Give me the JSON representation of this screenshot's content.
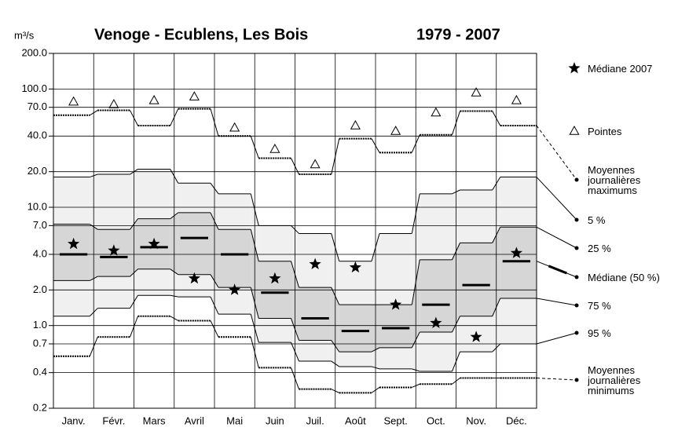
{
  "chart_data": {
    "type": "step",
    "title": "Venoge - Ecublens, Les Bois",
    "subtitle": "1979 - 2007",
    "y_label": "m³/s",
    "log_scale": true,
    "grid": true,
    "fills": [
      "#f0f0f0",
      "#d6d6d6"
    ],
    "categories": [
      "Janv.",
      "Févr.",
      "Mars",
      "Avril",
      "Mai",
      "Juin",
      "Juil.",
      "Août",
      "Sept.",
      "Oct.",
      "Nov.",
      "Déc."
    ],
    "ylim": [
      0.2,
      200
    ],
    "yticks": [
      {
        "value": 200,
        "label": "200.0"
      },
      {
        "value": 100,
        "label": "100.0"
      },
      {
        "value": 70,
        "label": "70.0"
      },
      {
        "value": 40,
        "label": "40.0"
      },
      {
        "value": 20,
        "label": "20.0"
      },
      {
        "value": 10,
        "label": "10.0"
      },
      {
        "value": 7,
        "label": "7.0"
      },
      {
        "value": 4,
        "label": "4.0"
      },
      {
        "value": 2,
        "label": "2.0"
      },
      {
        "value": 1,
        "label": "1.0"
      },
      {
        "value": 0.7,
        "label": "0.7"
      },
      {
        "value": 0.4,
        "label": "0.4"
      },
      {
        "value": 0.2,
        "label": "0.2"
      }
    ],
    "series": [
      {
        "name": "Médiane 2007",
        "color": "#000000",
        "marker": "star",
        "values": [
          4.9,
          4.3,
          4.9,
          2.5,
          2.0,
          2.5,
          3.3,
          3.1,
          1.5,
          1.05,
          0.8,
          4.1
        ]
      },
      {
        "name": "Pointes",
        "color": "#000000",
        "marker": "triangle",
        "values": [
          78,
          74,
          80,
          86,
          47,
          31,
          23,
          49,
          44,
          63,
          93,
          80
        ]
      },
      {
        "name": "Moyennes journalières maximums",
        "color": "#000000",
        "line": "dashed",
        "values": [
          60,
          66,
          49,
          68,
          40,
          26,
          19,
          38,
          29,
          41,
          65,
          49
        ]
      },
      {
        "name": "5 %",
        "color": "#000000",
        "line": "solid",
        "values": [
          18,
          19,
          21,
          16,
          13,
          7,
          6,
          3.5,
          6,
          13,
          14,
          18
        ]
      },
      {
        "name": "25 %",
        "color": "#000000",
        "line": "solid",
        "values": [
          7.2,
          6.5,
          8,
          9,
          6.5,
          3.5,
          2.1,
          1.5,
          1.5,
          3.6,
          5,
          6.8
        ]
      },
      {
        "name": "Médiane (50 %)",
        "color": "#000000",
        "line": "thick",
        "values": [
          4.0,
          3.8,
          4.6,
          5.5,
          4.0,
          1.9,
          1.15,
          0.9,
          0.95,
          1.5,
          2.2,
          3.5
        ]
      },
      {
        "name": "75 %",
        "color": "#000000",
        "line": "solid",
        "values": [
          2.4,
          2.6,
          3.0,
          2.7,
          2.1,
          1.15,
          0.75,
          0.6,
          0.65,
          0.88,
          1.2,
          1.7
        ]
      },
      {
        "name": "95 %",
        "color": "#000000",
        "line": "solid",
        "values": [
          1.2,
          1.4,
          1.8,
          1.75,
          1.25,
          0.72,
          0.5,
          0.45,
          0.43,
          0.41,
          0.6,
          0.7
        ]
      },
      {
        "name": "Moyennes journalières minimums",
        "color": "#000000",
        "line": "dashed",
        "values": [
          0.55,
          0.8,
          1.2,
          1.1,
          0.8,
          0.44,
          0.29,
          0.27,
          0.3,
          0.32,
          0.36,
          0.36
        ]
      }
    ]
  }
}
